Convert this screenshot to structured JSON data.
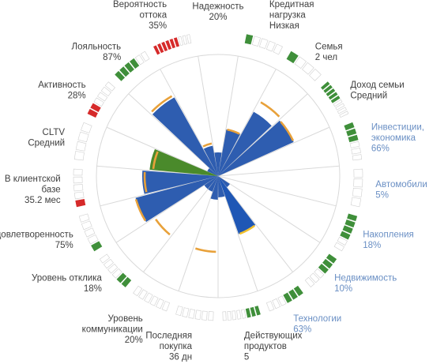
{
  "chart_data": {
    "type": "radial-bar",
    "title": "",
    "colors": {
      "bar": "#2E5DB0",
      "bar_highlight": "#1F57B5",
      "bar_accent": "#4A8A2B",
      "threshold_orange": "#E8A13A",
      "threshold_yellow": "#F2C12E",
      "segment_green": "#3F8F3A",
      "segment_red": "#D62A2A",
      "grid": "#D9D9D9",
      "label_dark": "#404040",
      "label_blue": "#6A8FC4"
    },
    "max_value": 100,
    "sectors": [
      {
        "name": "Надежность",
        "display": [
          "Надежность",
          "20%"
        ],
        "value": 20,
        "mark": 52,
        "mark_color": "none",
        "fill": "bar",
        "label_color": "dark",
        "segments": {
          "on": 0,
          "total": 0,
          "color": "green"
        }
      },
      {
        "name": "Кредитная нагрузка",
        "display": [
          "Кредитная",
          "нагрузка",
          "Низкая"
        ],
        "value": 40,
        "mark": 40,
        "mark_color": "orange",
        "fill": "bar",
        "label_color": "dark",
        "segments": {
          "on": 1,
          "total": 5,
          "color": "green"
        }
      },
      {
        "name": "Семья",
        "display": [
          "Семья",
          "2 чел"
        ],
        "value": 62,
        "mark": 72,
        "mark_color": "orange",
        "fill": "bar",
        "label_color": "dark",
        "segments": {
          "on": 1,
          "total": 4,
          "color": "green"
        }
      },
      {
        "name": "Доход семьи",
        "display": [
          "Доход семьи",
          "Средний"
        ],
        "value": 70,
        "mark": 70,
        "mark_color": "orange",
        "fill": "bar",
        "label_color": "dark",
        "segments": {
          "on": 5,
          "total": 9,
          "color": "green"
        }
      },
      {
        "name": "Инвестиции, экономика",
        "display": [
          "Инвестиции,",
          "экономика",
          "66%"
        ],
        "value": 0,
        "mark": 0,
        "mark_color": "none",
        "fill": "bar",
        "label_color": "blue",
        "segments": {
          "on": 3,
          "total": 6,
          "color": "green"
        }
      },
      {
        "name": "Автомобили",
        "display": [
          "Автомобили",
          "5%"
        ],
        "value": 0,
        "mark": 0,
        "mark_color": "none",
        "fill": "bar",
        "label_color": "blue",
        "segments": {
          "on": 0,
          "total": 4,
          "color": "green"
        }
      },
      {
        "name": "Накопления",
        "display": [
          "Накопления",
          "18%"
        ],
        "value": 0,
        "mark": 0,
        "mark_color": "none",
        "fill": "bar",
        "label_color": "blue",
        "segments": {
          "on": 4,
          "total": 6,
          "color": "green"
        }
      },
      {
        "name": "Недвижимость",
        "display": [
          "Недвижимость",
          "10%"
        ],
        "value": 12,
        "mark": 0,
        "mark_color": "none",
        "fill": "bar",
        "label_color": "blue",
        "segments": {
          "on": 3,
          "total": 6,
          "color": "green"
        }
      },
      {
        "name": "Технологии",
        "display": [
          "Технологии",
          "63%"
        ],
        "value": 52,
        "mark": 52,
        "mark_color": "yellow",
        "fill": "bar_highlight",
        "label_color": "blue",
        "segments": {
          "on": 3,
          "total": 6,
          "color": "green"
        }
      },
      {
        "name": "Действующих продуктов",
        "display": [
          "Действующих",
          "продуктов",
          "5"
        ],
        "value": 18,
        "mark": 0,
        "mark_color": "none",
        "fill": "bar",
        "label_color": "dark",
        "segments": {
          "on": 3,
          "total": 8,
          "color": "green"
        }
      },
      {
        "name": "Последняя покупка",
        "display": [
          "Последняя",
          "покупка",
          "36 дн"
        ],
        "value": 20,
        "mark": 64,
        "mark_color": "orange",
        "fill": "bar",
        "label_color": "dark",
        "segments": {
          "on": 0,
          "total": 6,
          "color": "green"
        }
      },
      {
        "name": "Уровень коммуникации",
        "display": [
          "Уровень",
          "коммуникации",
          "20%"
        ],
        "value": 14,
        "mark": 0,
        "mark_color": "none",
        "fill": "bar",
        "label_color": "dark",
        "segments": {
          "on": 0,
          "total": 6,
          "color": "green"
        }
      },
      {
        "name": "Уровень отклика",
        "display": [
          "Уровень отклика",
          "18%"
        ],
        "value": 14,
        "mark": 64,
        "mark_color": "orange",
        "fill": "bar",
        "label_color": "dark",
        "segments": {
          "on": 2,
          "total": 6,
          "color": "green"
        }
      },
      {
        "name": "Удовлетворенность",
        "display": [
          "Удовлетворенность",
          "75%"
        ],
        "value": 72,
        "mark": 72,
        "mark_color": "orange",
        "fill": "bar",
        "label_color": "dark",
        "segments": {
          "on": 1,
          "total": 5,
          "color": "green"
        }
      },
      {
        "name": "В клиентской базе",
        "display": [
          "В клиентской",
          "базе",
          "35.2 мес"
        ],
        "value": 64,
        "mark": 62,
        "mark_color": "orange",
        "fill": "bar",
        "label_color": "dark",
        "segments": {
          "on": 1,
          "total": 5,
          "color": "red"
        }
      },
      {
        "name": "CLTV",
        "display": [
          "CLTV",
          "Средний"
        ],
        "value": 58,
        "mark": 55,
        "mark_color": "orange",
        "fill": "bar_accent",
        "label_color": "dark",
        "segments": {
          "on": 0,
          "total": 4,
          "color": "green"
        }
      },
      {
        "name": "Активность",
        "display": [
          "Активность",
          "28%"
        ],
        "value": 10,
        "mark": 12,
        "mark_color": "none",
        "fill": "bar",
        "label_color": "dark",
        "segments": {
          "on": 2,
          "total": 6,
          "color": "red"
        }
      },
      {
        "name": "Лояльность",
        "display": [
          "Лояльность",
          "87%"
        ],
        "value": 76,
        "mark": 78,
        "mark_color": "orange",
        "fill": "bar",
        "label_color": "dark",
        "segments": {
          "on": 4,
          "total": 6,
          "color": "green"
        }
      },
      {
        "name": "Вероятность оттока",
        "display": [
          "Вероятность",
          "оттока",
          "35%"
        ],
        "value": 26,
        "mark": 28,
        "mark_color": "orange",
        "fill": "bar",
        "label_color": "dark",
        "segments": {
          "on": 6,
          "total": 9,
          "color": "red"
        }
      }
    ]
  }
}
